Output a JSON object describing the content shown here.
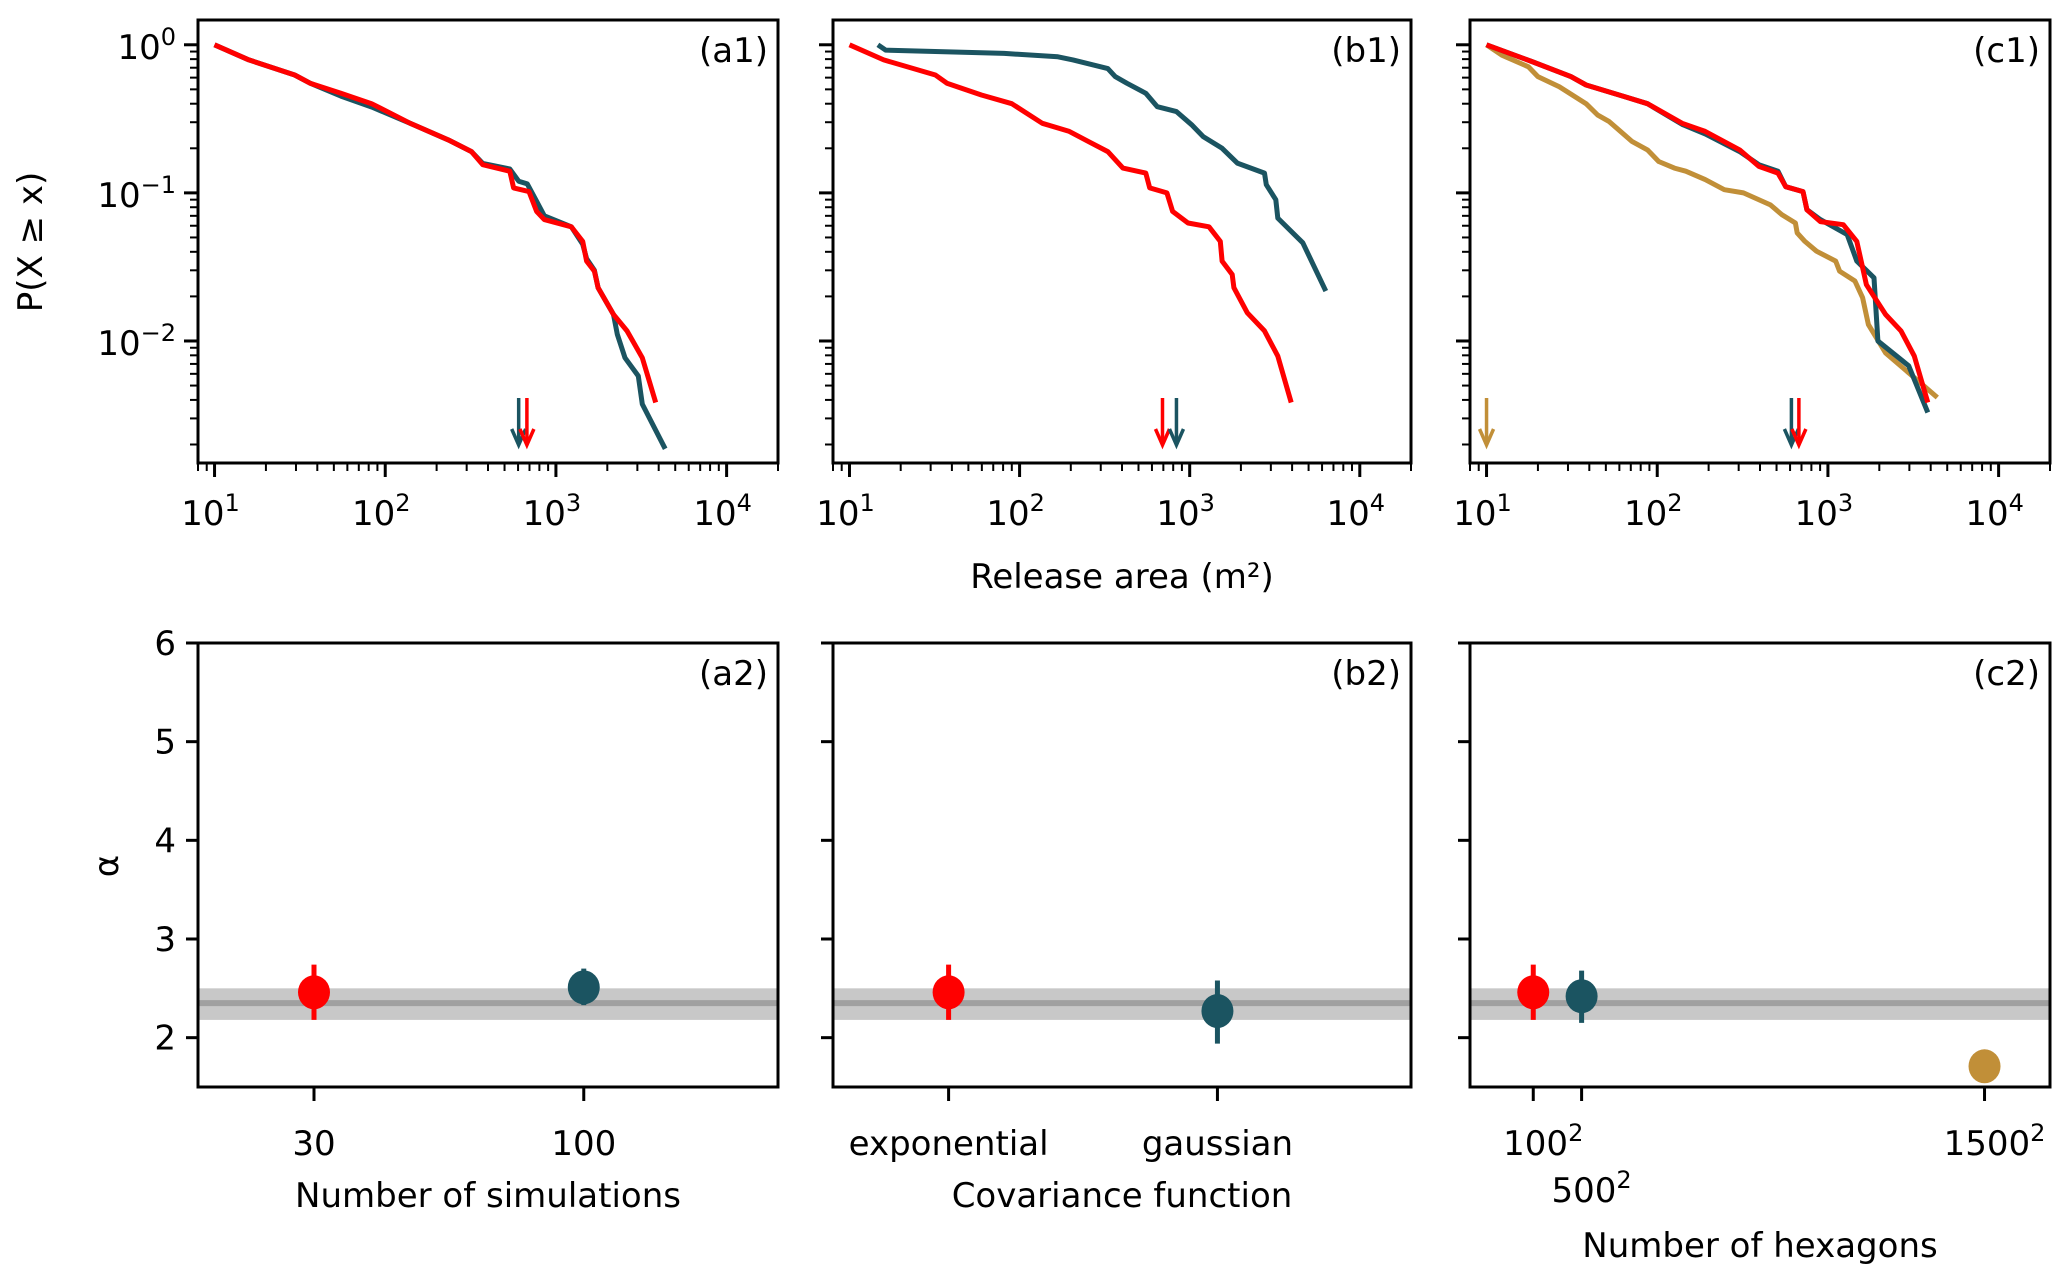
{
  "figure": {
    "top_shared_xlabel": "Release area (m²)",
    "top_ylabel": "P(X ≥ x)",
    "bottom_ylabel": "α"
  },
  "colors": {
    "red": "#ff0000",
    "teal": "#1b5461",
    "gold": "#c18f38",
    "band": "#c8c8c8",
    "band_line": "#a0a0a0"
  },
  "chart_data": [
    {
      "id": "a1",
      "type": "line",
      "panel_label": "(a1)",
      "xscale": "log",
      "yscale": "log",
      "xlim": [
        8,
        20000
      ],
      "ylim": [
        0.0015,
        1.47
      ],
      "xticks": [
        {
          "v": 10,
          "base": "10",
          "exp": "1"
        },
        {
          "v": 100,
          "base": "10",
          "exp": "2"
        },
        {
          "v": 1000,
          "base": "10",
          "exp": "3"
        },
        {
          "v": 10000,
          "base": "10",
          "exp": "4"
        }
      ],
      "yticks": [
        {
          "v": 1,
          "base": "10",
          "exp": "0"
        },
        {
          "v": 0.1,
          "base": "10",
          "exp": "−1"
        },
        {
          "v": 0.01,
          "base": "10",
          "exp": "−2"
        }
      ],
      "ylabel": "P(X ≥ x)",
      "xlabel": "",
      "series": [
        {
          "name": "100 simulations",
          "color": "teal",
          "x": [
            10,
            15.9,
            29.5,
            36.3,
            55,
            83.2,
            140,
            234,
            320,
            373,
            537,
            605,
            680,
            770,
            855,
            1230,
            1436,
            1513,
            1680,
            1767,
            2175,
            2290,
            2540,
            3040,
            3207,
            4370
          ],
          "y": [
            1.0,
            0.79,
            0.625,
            0.55,
            0.45,
            0.38,
            0.295,
            0.228,
            0.19,
            0.158,
            0.145,
            0.12,
            0.115,
            0.088,
            0.07,
            0.059,
            0.045,
            0.036,
            0.03,
            0.0229,
            0.0151,
            0.0111,
            0.0077,
            0.0058,
            0.00375,
            0.00187
          ]
        },
        {
          "name": "30 simulations",
          "color": "red",
          "x": [
            10,
            15.9,
            29.5,
            36.3,
            55,
            83.2,
            140,
            234,
            320,
            373,
            537,
            565,
            695,
            771,
            855,
            1230,
            1436,
            1513,
            1680,
            1767,
            2175,
            2607,
            3207,
            3840
          ],
          "y": [
            1.0,
            0.79,
            0.625,
            0.55,
            0.47,
            0.4,
            0.295,
            0.228,
            0.19,
            0.155,
            0.14,
            0.108,
            0.102,
            0.075,
            0.066,
            0.059,
            0.047,
            0.0346,
            0.0296,
            0.0229,
            0.0151,
            0.0117,
            0.0077,
            0.00384
          ]
        }
      ],
      "arrows": [
        {
          "color": "teal",
          "x": 605
        },
        {
          "color": "red",
          "x": 676
        }
      ]
    },
    {
      "id": "b1",
      "type": "line",
      "panel_label": "(b1)",
      "xscale": "log",
      "yscale": "log",
      "xlim": [
        8,
        20000
      ],
      "ylim": [
        0.0015,
        1.47
      ],
      "xticks": [
        {
          "v": 10,
          "base": "10",
          "exp": "1"
        },
        {
          "v": 100,
          "base": "10",
          "exp": "2"
        },
        {
          "v": 1000,
          "base": "10",
          "exp": "3"
        },
        {
          "v": 10000,
          "base": "10",
          "exp": "4"
        }
      ],
      "yticks": [
        {
          "v": 1,
          "base": "",
          "exp": ""
        },
        {
          "v": 0.1,
          "base": "",
          "exp": ""
        },
        {
          "v": 0.01,
          "base": "",
          "exp": ""
        }
      ],
      "xlabel": "Release area (m²)",
      "series": [
        {
          "name": "gaussian",
          "color": "teal",
          "x": [
            14.7,
            16.3,
            81.3,
            168,
            206,
            330,
            365,
            427,
            552,
            645,
            836,
            1028,
            1200,
            1550,
            1905,
            2754,
            2820,
            3210,
            3296,
            4624,
            6310
          ],
          "y": [
            1.0,
            0.92,
            0.875,
            0.83,
            0.79,
            0.69,
            0.61,
            0.55,
            0.47,
            0.382,
            0.354,
            0.288,
            0.24,
            0.2,
            0.159,
            0.136,
            0.1135,
            0.09,
            0.0676,
            0.046,
            0.0217
          ]
        },
        {
          "name": "exponential",
          "color": "red",
          "x": [
            10,
            15.9,
            32,
            37.4,
            59.6,
            90,
            136,
            196,
            254,
            330,
            405,
            552,
            582,
            735,
            794,
            977,
            1298,
            1514,
            1550,
            1778,
            1820,
            2180,
            2754,
            3296,
            3953
          ],
          "y": [
            1.0,
            0.79,
            0.625,
            0.55,
            0.458,
            0.4,
            0.295,
            0.26,
            0.222,
            0.19,
            0.147,
            0.136,
            0.108,
            0.1,
            0.075,
            0.0626,
            0.059,
            0.047,
            0.0346,
            0.0281,
            0.0229,
            0.0155,
            0.0117,
            0.0079,
            0.00384
          ]
        }
      ],
      "arrows": [
        {
          "color": "red",
          "x": 692
        },
        {
          "color": "teal",
          "x": 836
        }
      ]
    },
    {
      "id": "c1",
      "type": "line",
      "panel_label": "(c1)",
      "xscale": "log",
      "yscale": "log",
      "xlim": [
        8,
        20000
      ],
      "ylim": [
        0.0015,
        1.47
      ],
      "xticks": [
        {
          "v": 10,
          "base": "10",
          "exp": "1"
        },
        {
          "v": 100,
          "base": "10",
          "exp": "2"
        },
        {
          "v": 1000,
          "base": "10",
          "exp": "3"
        },
        {
          "v": 10000,
          "base": "10",
          "exp": "4"
        }
      ],
      "yticks": [
        {
          "v": 1,
          "base": "",
          "exp": ""
        },
        {
          "v": 0.1,
          "base": "",
          "exp": ""
        },
        {
          "v": 0.01,
          "base": "",
          "exp": ""
        }
      ],
      "xlabel": "",
      "series": [
        {
          "name": "1500² hexagons",
          "color": "gold",
          "x": [
            10,
            12.3,
            17.6,
            20,
            26.7,
            38.3,
            44.7,
            52.3,
            71.3,
            87.7,
            102,
            126,
            147,
            191,
            247,
            320,
            460,
            537,
            645,
            661,
            733,
            857,
            1111,
            1170,
            1439,
            1596,
            1726,
            2178,
            3126,
            4375
          ],
          "y": [
            1.0,
            0.85,
            0.71,
            0.61,
            0.52,
            0.4,
            0.336,
            0.303,
            0.222,
            0.195,
            0.163,
            0.147,
            0.14,
            0.123,
            0.105,
            0.1,
            0.083,
            0.0713,
            0.0626,
            0.0537,
            0.047,
            0.0404,
            0.0346,
            0.0296,
            0.0254,
            0.0196,
            0.0129,
            0.0083,
            0.0058,
            0.00415
          ]
        },
        {
          "name": "500² hexagons",
          "color": "teal",
          "x": [
            10,
            18.5,
            31.2,
            38.3,
            64.3,
            87.7,
            140,
            191,
            304,
            394,
            510,
            566,
            714,
            753,
            903,
            1297,
            1476,
            1862,
            1963,
            2972,
            3846
          ],
          "y": [
            1.0,
            0.77,
            0.61,
            0.535,
            0.447,
            0.4,
            0.29,
            0.25,
            0.19,
            0.155,
            0.14,
            0.11,
            0.102,
            0.077,
            0.066,
            0.0523,
            0.0346,
            0.0267,
            0.01,
            0.0068,
            0.00329
          ]
        },
        {
          "name": "100² hexagons",
          "color": "red",
          "x": [
            10,
            18.5,
            31.2,
            38.3,
            64.3,
            87.7,
            140,
            191,
            304,
            394,
            510,
            566,
            714,
            753,
            903,
            1230,
            1476,
            1680,
            2178,
            2680,
            3207,
            3846
          ],
          "y": [
            1.0,
            0.77,
            0.61,
            0.535,
            0.447,
            0.4,
            0.295,
            0.26,
            0.195,
            0.151,
            0.136,
            0.11,
            0.102,
            0.077,
            0.064,
            0.061,
            0.047,
            0.024,
            0.0151,
            0.0117,
            0.0079,
            0.00384
          ]
        }
      ],
      "arrows": [
        {
          "color": "gold",
          "x": 10
        },
        {
          "color": "teal",
          "x": 611
        },
        {
          "color": "red",
          "x": 676
        }
      ]
    },
    {
      "id": "a2",
      "type": "scatter",
      "panel_label": "(a2)",
      "xlim": [
        -0.43,
        1.72
      ],
      "ylim": [
        1.5,
        6
      ],
      "yticks": [
        "2",
        "3",
        "4",
        "5",
        "6"
      ],
      "ylabel": "α",
      "xlabel": "Number of simulations",
      "categories": [
        "30",
        "100"
      ],
      "band": {
        "center": 2.35,
        "low": 2.18,
        "high": 2.5
      },
      "points": [
        {
          "cat": 0,
          "value": 2.46,
          "err_low": 2.18,
          "err_high": 2.74,
          "color": "red"
        },
        {
          "cat": 1,
          "value": 2.51,
          "err_low": 2.33,
          "err_high": 2.7,
          "color": "teal"
        }
      ]
    },
    {
      "id": "b2",
      "type": "scatter",
      "panel_label": "(b2)",
      "xlim": [
        -0.43,
        1.72
      ],
      "ylim": [
        1.5,
        6
      ],
      "yticks": [
        "",
        "",
        "",
        "",
        ""
      ],
      "xlabel": "Covariance function",
      "categories": [
        "exponential",
        "gaussian"
      ],
      "band": {
        "center": 2.35,
        "low": 2.18,
        "high": 2.5
      },
      "points": [
        {
          "cat": 0,
          "value": 2.46,
          "err_low": 2.18,
          "err_high": 2.74,
          "color": "red"
        },
        {
          "cat": 1,
          "value": 2.27,
          "err_low": 1.94,
          "err_high": 2.58,
          "color": "teal"
        }
      ]
    },
    {
      "id": "c2",
      "type": "scatter",
      "panel_label": "(c2)",
      "xlim": [
        -304000,
        2575000
      ],
      "ylim": [
        1.5,
        6
      ],
      "yticks": [
        "",
        "",
        "",
        "",
        ""
      ],
      "xlabel": "Number of hexagons",
      "categories": [
        {
          "v": 10000,
          "base": "100",
          "exp": "2",
          "row": 0
        },
        {
          "v": 250000,
          "base": "500",
          "exp": "2",
          "row": 1
        },
        {
          "v": 2250000,
          "base": "1500",
          "exp": "2",
          "row": 0
        }
      ],
      "band": {
        "center": 2.35,
        "low": 2.18,
        "high": 2.5
      },
      "points": [
        {
          "x": 10000,
          "value": 2.46,
          "err_low": 2.18,
          "err_high": 2.74,
          "color": "red"
        },
        {
          "x": 250000,
          "value": 2.42,
          "err_low": 2.15,
          "err_high": 2.68,
          "color": "teal"
        },
        {
          "x": 2250000,
          "value": 1.71,
          "err_low": 1.71,
          "err_high": 1.71,
          "color": "gold"
        }
      ]
    }
  ]
}
